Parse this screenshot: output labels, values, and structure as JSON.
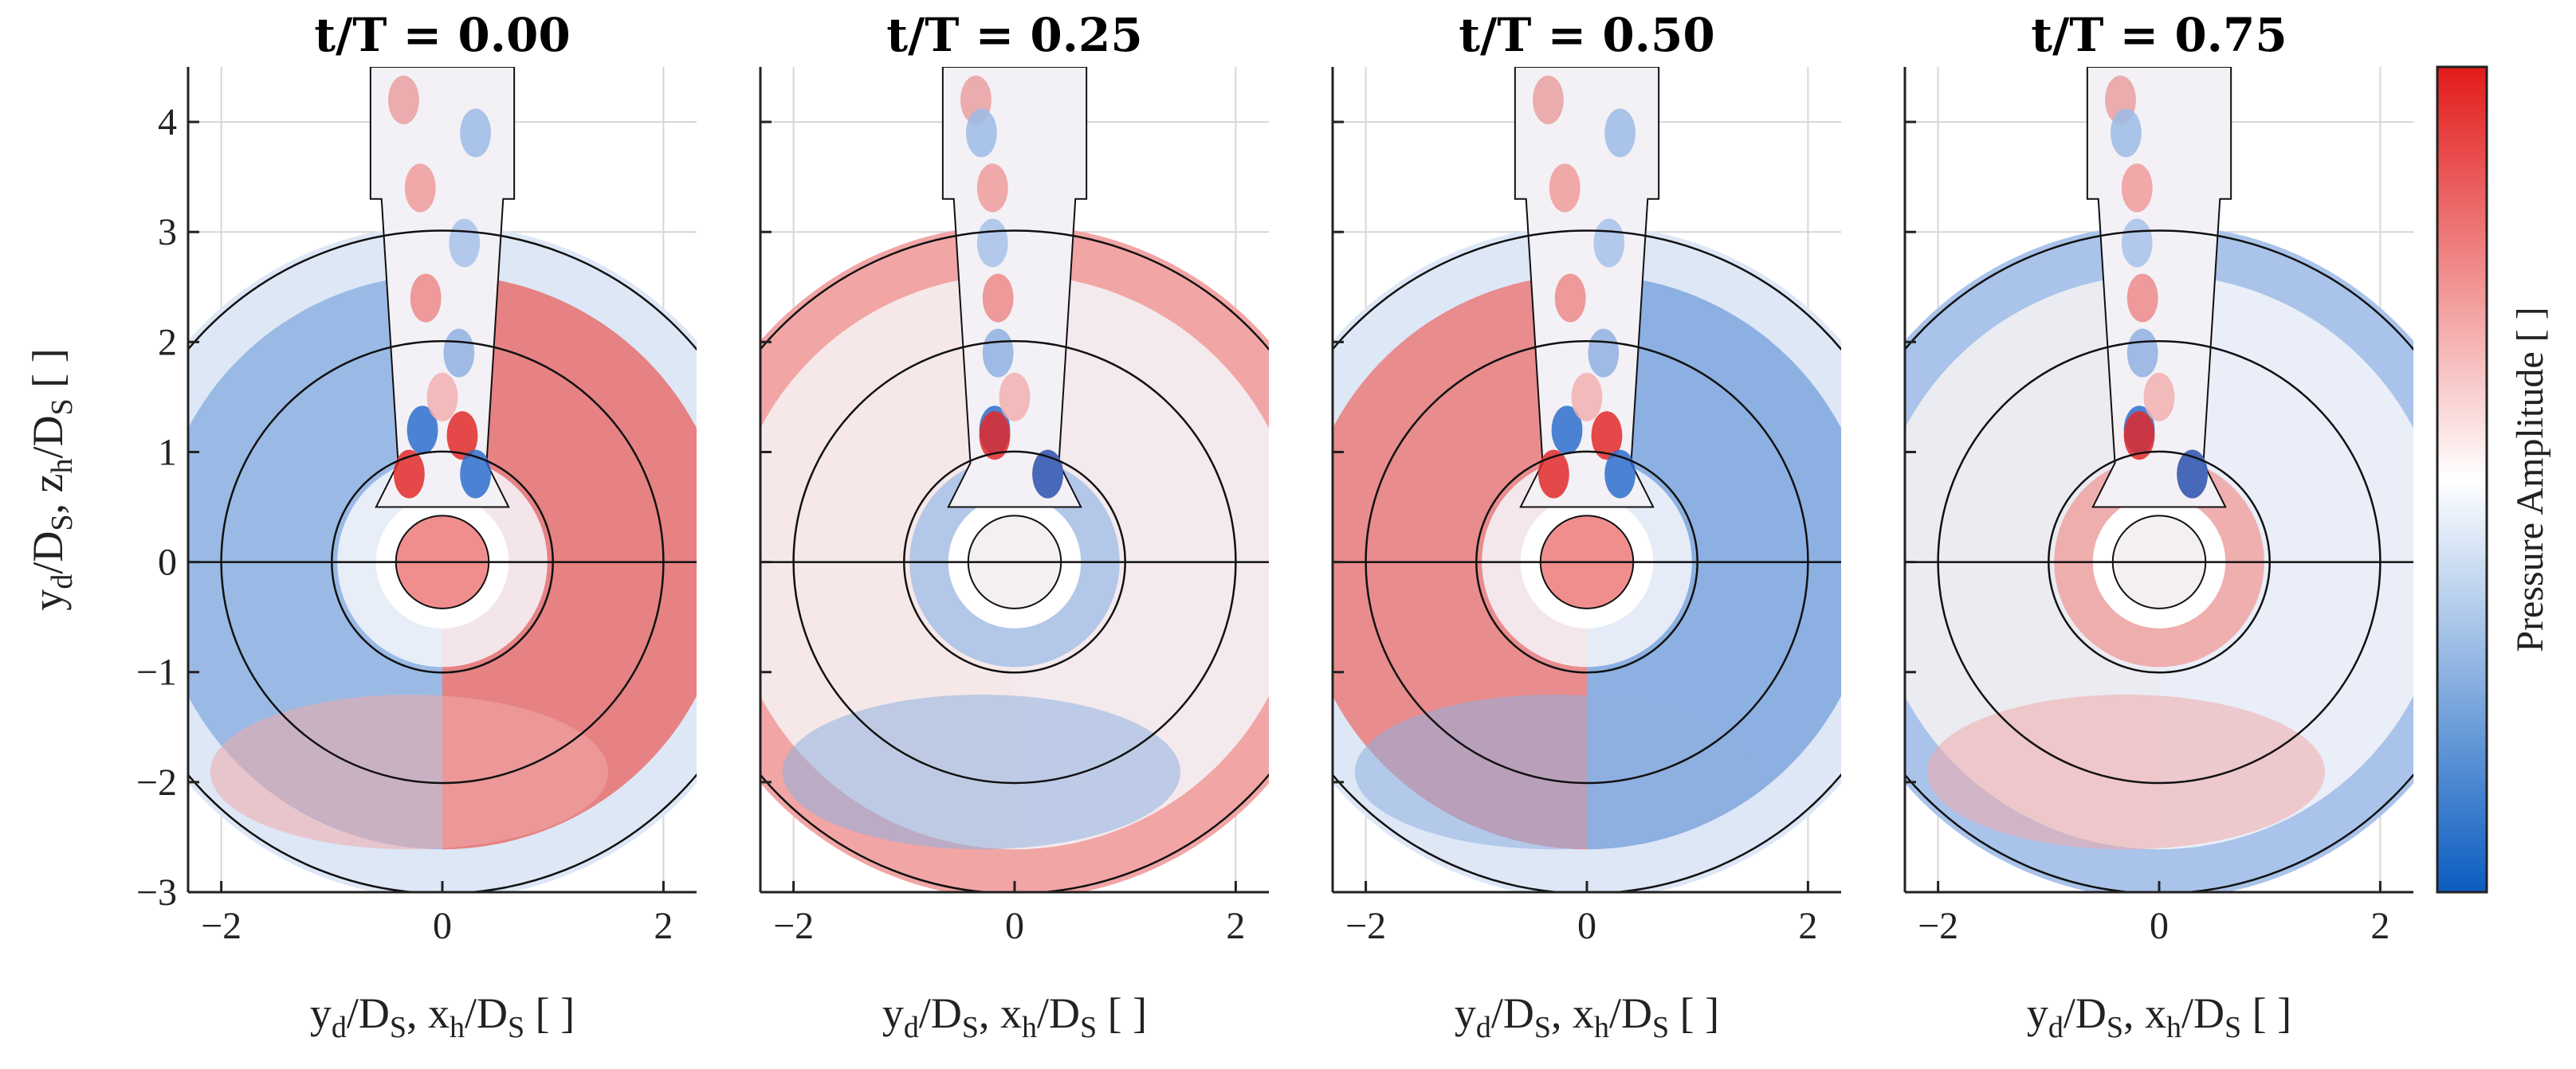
{
  "chart_data": {
    "type": "heatmap",
    "panels": [
      {
        "title": "t/T = 0.00",
        "phase": 0.0
      },
      {
        "title": "t/T = 0.25",
        "phase": 0.25
      },
      {
        "title": "t/T = 0.50",
        "phase": 0.5
      },
      {
        "title": "t/T = 0.75",
        "phase": 0.75
      }
    ],
    "x_ticks": [
      "−2",
      "0",
      "2"
    ],
    "x_tick_values": [
      -2,
      0,
      2
    ],
    "y_ticks": [
      "4",
      "3",
      "2",
      "1",
      "0",
      "−1",
      "−2",
      "−3"
    ],
    "y_tick_values": [
      4,
      3,
      2,
      1,
      0,
      -1,
      -2,
      -3
    ],
    "xlim": [
      -2.3,
      2.3
    ],
    "ylim": [
      -3,
      4.5
    ],
    "xlabel": {
      "v1": "y",
      "s1": "d",
      "slash1": "/D",
      "s2": "S",
      "comma": ", x",
      "s3": "h",
      "slash2": "/D",
      "s4": "S",
      "unit": " [ ]"
    },
    "ylabel": {
      "v1": "y",
      "s1": "d",
      "slash1": "/D",
      "s2": "S",
      "comma": ", z",
      "s3": "h",
      "slash2": "/D",
      "s4": "S",
      "unit": " [ ]"
    },
    "colorbar": {
      "label": "Pressure Amplitude [ ]",
      "colors": [
        "#0b5cc0",
        "#ffffff",
        "#e21b1b"
      ]
    },
    "circle_radii": [
      1.0,
      2.0,
      3.0
    ],
    "grid": true
  }
}
